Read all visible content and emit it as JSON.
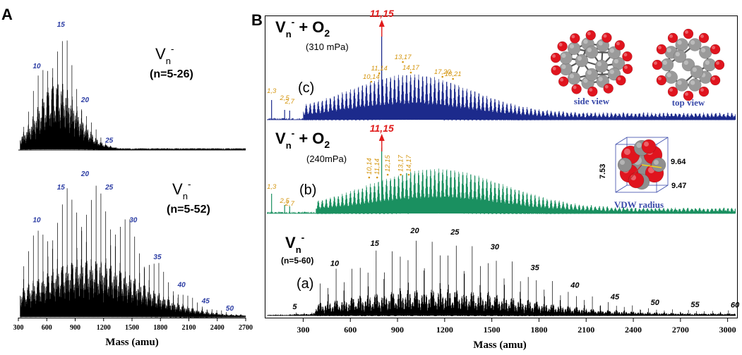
{
  "colors": {
    "axis": "#000000",
    "panel_a_trace": "#000000",
    "peak_label_blue": "#2b3ca3",
    "trace_c": "#1c2a8c",
    "trace_b": "#1a9060",
    "trace_a": "#000000",
    "highlight_red": "#e01b1b",
    "minor_label_orange": "#d4950e",
    "struct_label": "#3a4aaa"
  },
  "panel_a": {
    "label": "A",
    "top": {
      "formula_base": "V",
      "formula_sub": "n",
      "formula_sup": "-",
      "range": "(n=5-26)"
    },
    "bottom": {
      "formula_base": "V",
      "formula_sub": "n",
      "formula_sup": "-",
      "range": "(n=5-52)"
    },
    "xlabel": "Mass (amu)"
  },
  "panel_b": {
    "label": "B",
    "c": {
      "title_base": "V",
      "title_sub": "n",
      "title_sup": "-",
      "title_plus": "+ O",
      "title_o2_sub": "2",
      "pressure": "(310 mPa)",
      "trace_label": "(c)",
      "highlight": "11,15",
      "minor_labels": [
        "1,3",
        "2,5",
        "2,7",
        "10,14",
        "11,14",
        "13,17",
        "14,17",
        "17,20",
        "18,21"
      ]
    },
    "b": {
      "title_base": "V",
      "title_sub": "n",
      "title_sup": "-",
      "title_plus": "+ O",
      "title_o2_sub": "2",
      "pressure": "(240mPa)",
      "trace_label": "(b)",
      "highlight": "11,15",
      "minor_labels": [
        "1,3",
        "2,5",
        "2,7",
        "10,14",
        "11,14",
        "12,15",
        "13,17",
        "14,17"
      ]
    },
    "a": {
      "title_base": "V",
      "title_sub": "n",
      "title_sup": "-",
      "range": "(n=5-60)",
      "trace_label": "(a)"
    },
    "xlabel": "Mass (amu)",
    "structure": {
      "side_view": "side view",
      "top_view": "top view",
      "vdw": "VDW radius",
      "dim1": "9.64",
      "dim2": "7.53",
      "dim3": "9.47"
    }
  },
  "chart_data": [
    {
      "type": "line",
      "panel": "A (top)",
      "title": "",
      "legend": "Vn- (n=5-26)",
      "xlabel": "Mass (amu)",
      "ylabel": "",
      "xlim": [
        300,
        2700
      ],
      "peak_labels": [
        {
          "n": 10,
          "mass": 509
        },
        {
          "n": 15,
          "mass": 764
        },
        {
          "n": 20,
          "mass": 1019
        },
        {
          "n": 25,
          "mass": 1274
        }
      ],
      "envelope_center_n": 14,
      "n_range": [
        5,
        26
      ]
    },
    {
      "type": "line",
      "panel": "A (bottom)",
      "title": "",
      "legend": "Vn- (n=5-52)",
      "xlabel": "Mass (amu)",
      "ylabel": "",
      "xlim": [
        300,
        2700
      ],
      "xticks": [
        300,
        600,
        900,
        1200,
        1500,
        1800,
        2100,
        2400,
        2700
      ],
      "peak_labels": [
        {
          "n": 10,
          "mass": 509
        },
        {
          "n": 15,
          "mass": 764
        },
        {
          "n": 20,
          "mass": 1019
        },
        {
          "n": 25,
          "mass": 1274
        },
        {
          "n": 30,
          "mass": 1528
        },
        {
          "n": 35,
          "mass": 1783
        },
        {
          "n": 40,
          "mass": 2038
        },
        {
          "n": 45,
          "mass": 2292
        },
        {
          "n": 50,
          "mass": 2547
        }
      ],
      "envelope_center_n": 20,
      "n_range": [
        5,
        52
      ]
    },
    {
      "type": "line",
      "panel": "B (c)",
      "title": "",
      "legend": "Vn- + O2 (310 mPa)",
      "xlabel": "Mass (amu)",
      "ylabel": "",
      "xlim": [
        60,
        3060
      ],
      "highlight": {
        "label": "11,15",
        "mass": 800
      },
      "peak_labels": [
        {
          "label": "1,3",
          "mass": 99
        },
        {
          "label": "2,5",
          "mass": 182
        },
        {
          "label": "2,7",
          "mass": 214
        },
        {
          "label": "10,14",
          "mass": 733
        },
        {
          "label": "11,14",
          "mass": 784
        },
        {
          "label": "13,17",
          "mass": 934
        },
        {
          "label": "14,17",
          "mass": 985
        },
        {
          "label": "17,20",
          "mass": 1186
        },
        {
          "label": "18,21",
          "mass": 1253
        }
      ]
    },
    {
      "type": "line",
      "panel": "B (b)",
      "title": "",
      "legend": "Vn- + O2 (240mPa)",
      "xlabel": "Mass (amu)",
      "ylabel": "",
      "xlim": [
        60,
        3060
      ],
      "highlight": {
        "label": "11,15",
        "mass": 800
      },
      "peak_labels": [
        {
          "label": "1,3",
          "mass": 99
        },
        {
          "label": "2,5",
          "mass": 182
        },
        {
          "label": "2,7",
          "mass": 214
        },
        {
          "label": "10,14",
          "mass": 733
        },
        {
          "label": "11,14",
          "mass": 784
        },
        {
          "label": "12,15",
          "mass": 851
        },
        {
          "label": "13,17",
          "mass": 934
        },
        {
          "label": "14,17",
          "mass": 985
        }
      ]
    },
    {
      "type": "line",
      "panel": "B (a)",
      "title": "",
      "legend": "Vn- (n=5-60)",
      "xlabel": "Mass (amu)",
      "ylabel": "",
      "xlim": [
        60,
        3060
      ],
      "xticks": [
        300,
        600,
        900,
        1200,
        1500,
        1800,
        2100,
        2400,
        2700,
        3000
      ],
      "peak_labels": [
        {
          "n": 5,
          "mass": 255
        },
        {
          "n": 10,
          "mass": 509
        },
        {
          "n": 15,
          "mass": 764
        },
        {
          "n": 20,
          "mass": 1019
        },
        {
          "n": 25,
          "mass": 1274
        },
        {
          "n": 30,
          "mass": 1528
        },
        {
          "n": 35,
          "mass": 1783
        },
        {
          "n": 40,
          "mass": 2038
        },
        {
          "n": 45,
          "mass": 2292
        },
        {
          "n": 50,
          "mass": 2547
        },
        {
          "n": 55,
          "mass": 2802
        },
        {
          "n": 60,
          "mass": 3056
        }
      ],
      "envelope_center_n": 22,
      "n_range": [
        5,
        60
      ]
    }
  ]
}
